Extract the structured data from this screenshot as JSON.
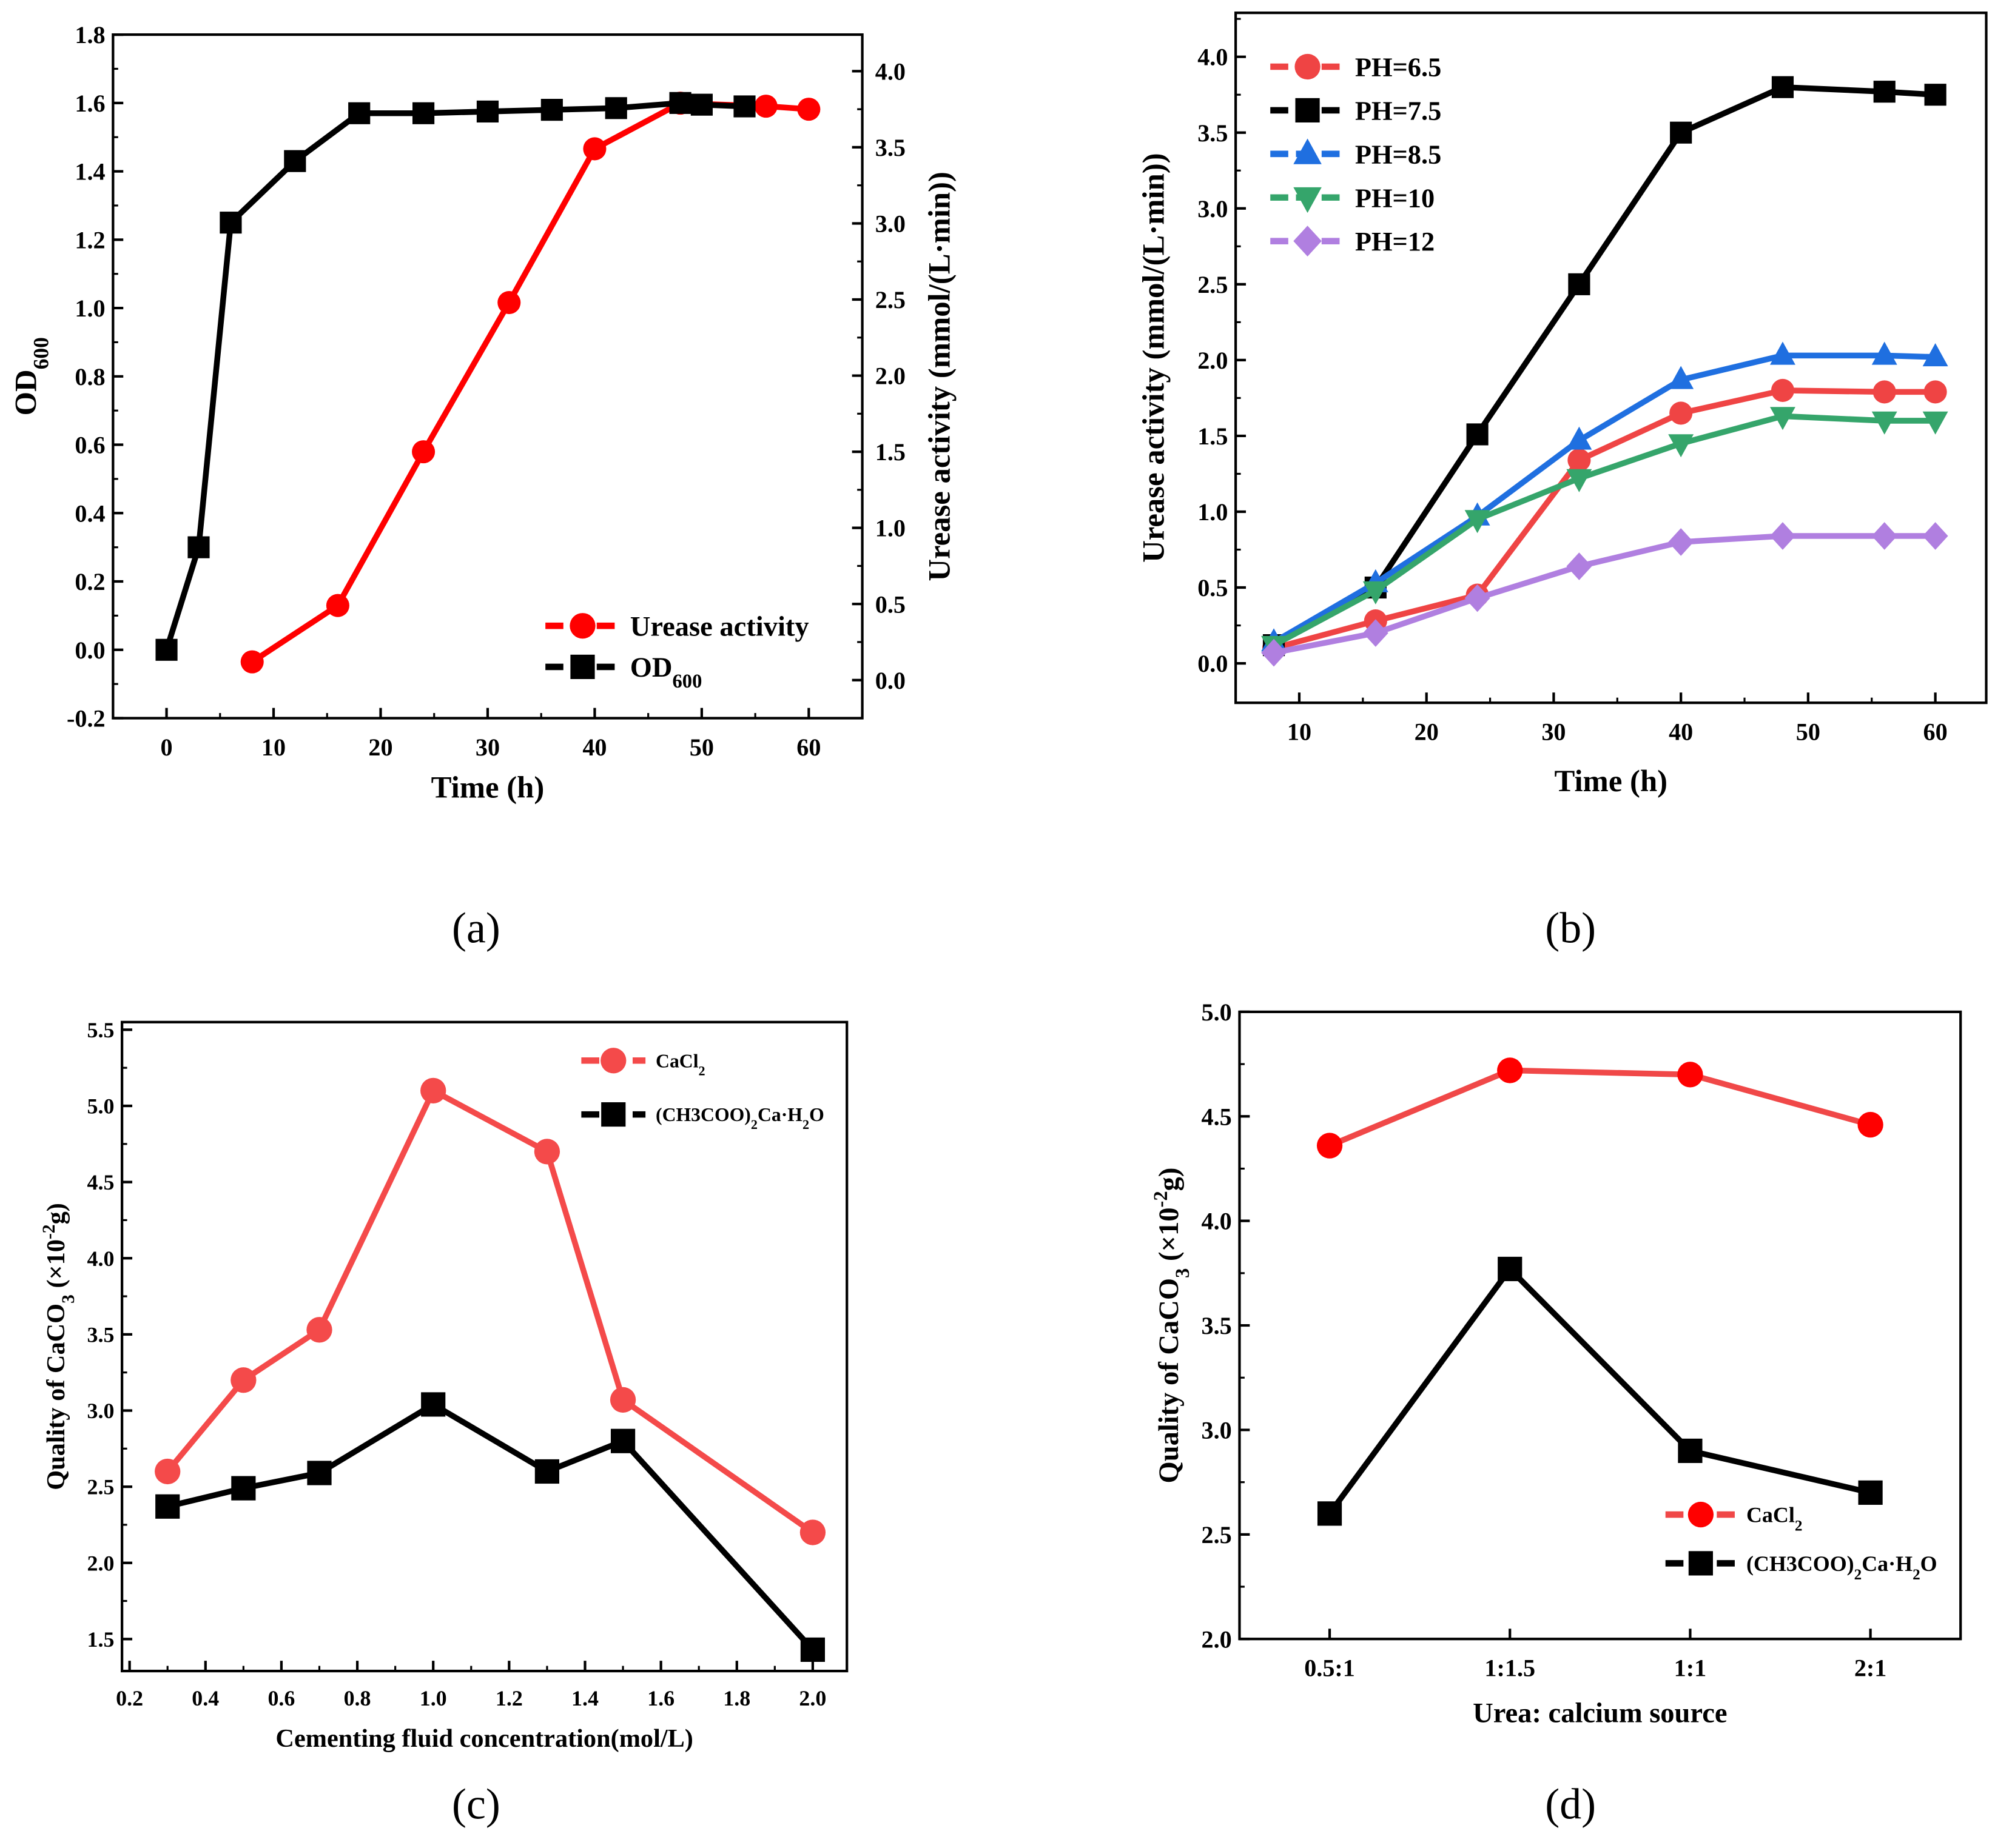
{
  "chart_data": [
    {
      "id": "a",
      "caption": "(a)",
      "type": "line",
      "xlabel": [
        {
          "t": "Time (h)"
        }
      ],
      "ylabel": [
        {
          "t": "OD"
        },
        {
          "t": "600",
          "s": "sub"
        }
      ],
      "y2label": [
        {
          "t": "Urease activity (mmol/(L·min))"
        }
      ],
      "xlim": [
        -5,
        65
      ],
      "ylim": [
        -0.2,
        1.8
      ],
      "y2lim": [
        -0.25,
        4.24
      ],
      "xticks": [
        0,
        10,
        20,
        30,
        40,
        50,
        60
      ],
      "yticks": [
        -0.2,
        0.0,
        0.2,
        0.4,
        0.6,
        0.8,
        1.0,
        1.2,
        1.4,
        1.6,
        1.8
      ],
      "y2ticks": [
        0.0,
        0.5,
        1.0,
        1.5,
        2.0,
        2.5,
        3.0,
        3.5,
        4.0
      ],
      "legend_position": "bottom-right",
      "series": [
        {
          "name": [
            {
              "t": "Urease activity"
            }
          ],
          "axis": "right",
          "marker": "circle",
          "color": "#ff0000",
          "x": [
            8,
            16,
            24,
            32,
            40,
            48,
            56,
            60
          ],
          "y": [
            0.12,
            0.49,
            1.5,
            2.48,
            3.49,
            3.79,
            3.77,
            3.75
          ]
        },
        {
          "name": [
            {
              "t": "OD"
            },
            {
              "t": "600",
              "s": "sub"
            }
          ],
          "axis": "left",
          "marker": "square",
          "color": "#000000",
          "x": [
            0,
            3,
            6,
            12,
            18,
            24,
            30,
            36,
            42,
            48,
            50,
            54
          ],
          "y": [
            0.0,
            0.3,
            1.25,
            1.43,
            1.57,
            1.57,
            1.575,
            1.58,
            1.585,
            1.6,
            1.595,
            1.59
          ]
        }
      ]
    },
    {
      "id": "b",
      "caption": "(b)",
      "type": "line",
      "xlabel": [
        {
          "t": "Time (h)"
        }
      ],
      "ylabel": [
        {
          "t": "Urease activity (mmol/(L·min))"
        }
      ],
      "xlim": [
        5,
        64
      ],
      "ylim": [
        -0.26,
        4.29
      ],
      "xticks": [
        10,
        20,
        30,
        40,
        50,
        60
      ],
      "yticks": [
        0.0,
        0.5,
        1.0,
        1.5,
        2.0,
        2.5,
        3.0,
        3.5,
        4.0
      ],
      "legend_position": "top-left",
      "series": [
        {
          "name": [
            {
              "t": "PH=6.5"
            }
          ],
          "marker": "circle",
          "color": "#ef4444",
          "x": [
            8,
            16,
            24,
            32,
            40,
            48,
            56,
            60
          ],
          "y": [
            0.1,
            0.28,
            0.45,
            1.34,
            1.65,
            1.8,
            1.79,
            1.79
          ]
        },
        {
          "name": [
            {
              "t": "PH=7.5"
            }
          ],
          "marker": "square",
          "color": "#000000",
          "x": [
            8,
            16,
            24,
            32,
            40,
            48,
            56,
            60
          ],
          "y": [
            0.12,
            0.5,
            1.51,
            2.5,
            3.5,
            3.8,
            3.77,
            3.75
          ]
        },
        {
          "name": [
            {
              "t": "PH=8.5"
            }
          ],
          "marker": "triangle-up",
          "color": "#1f6fe0",
          "x": [
            8,
            16,
            24,
            32,
            40,
            48,
            56,
            60
          ],
          "y": [
            0.14,
            0.53,
            0.97,
            1.47,
            1.87,
            2.03,
            2.03,
            2.02
          ]
        },
        {
          "name": [
            {
              "t": "PH=10"
            }
          ],
          "marker": "triangle-down",
          "color": "#35a56b",
          "x": [
            8,
            16,
            24,
            32,
            40,
            48,
            56,
            60
          ],
          "y": [
            0.12,
            0.48,
            0.95,
            1.22,
            1.45,
            1.63,
            1.6,
            1.6
          ]
        },
        {
          "name": [
            {
              "t": "PH=12"
            }
          ],
          "marker": "diamond",
          "color": "#b07fe0",
          "x": [
            8,
            16,
            24,
            32,
            40,
            48,
            56,
            60
          ],
          "y": [
            0.07,
            0.2,
            0.43,
            0.64,
            0.8,
            0.84,
            0.84,
            0.84
          ]
        }
      ]
    },
    {
      "id": "c",
      "caption": "(c)",
      "type": "line",
      "xlabel": [
        {
          "t": "Cementing fluid concentration(mol/L)"
        }
      ],
      "ylabel": [
        {
          "t": "Quality of CaCO"
        },
        {
          "t": "3",
          "s": "sub"
        },
        {
          "t": " (×10"
        },
        {
          "t": "-2",
          "s": "sup"
        },
        {
          "t": "g)"
        }
      ],
      "xlim": [
        0.18,
        2.09
      ],
      "ylim": [
        1.29,
        5.55
      ],
      "xticks": [
        0.2,
        0.4,
        0.6,
        0.8,
        1.0,
        1.2,
        1.4,
        1.6,
        1.8,
        2.0
      ],
      "yticks": [
        1.5,
        2.0,
        2.5,
        3.0,
        3.5,
        4.0,
        4.5,
        5.0,
        5.5
      ],
      "legend_position": "top-right",
      "series": [
        {
          "name": [
            {
              "t": "CaCl"
            },
            {
              "t": "2",
              "s": "sub"
            }
          ],
          "marker": "circle",
          "color": "#f44a4a",
          "x": [
            0.3,
            0.5,
            0.7,
            1.0,
            1.3,
            1.5,
            2.0
          ],
          "y": [
            2.6,
            3.2,
            3.53,
            5.1,
            4.7,
            3.07,
            2.2
          ]
        },
        {
          "name": [
            {
              "t": "(CH3COO)"
            },
            {
              "t": "2",
              "s": "sub"
            },
            {
              "t": "Ca·H"
            },
            {
              "t": "2",
              "s": "sub"
            },
            {
              "t": "O"
            }
          ],
          "marker": "square",
          "color": "#000000",
          "x": [
            0.3,
            0.5,
            0.7,
            1.0,
            1.3,
            1.5,
            2.0
          ],
          "y": [
            2.37,
            2.49,
            2.59,
            3.04,
            2.6,
            2.8,
            1.43
          ]
        }
      ]
    },
    {
      "id": "d",
      "caption": "(d)",
      "type": "line",
      "xlabel": [
        {
          "t": "Urea: calcium source"
        }
      ],
      "ylabel": [
        {
          "t": "Quality of CaCO"
        },
        {
          "t": "3",
          "s": "sub"
        },
        {
          "t": " (×10"
        },
        {
          "t": "-2",
          "s": "sup"
        },
        {
          "t": "g)"
        }
      ],
      "categories": [
        "0.5:1",
        "1:1.5",
        "1:1",
        "2:1"
      ],
      "ylim": [
        2.0,
        5.0
      ],
      "yticks": [
        2.0,
        2.5,
        3.0,
        3.5,
        4.0,
        4.5,
        5.0
      ],
      "legend_position": "bottom-right",
      "series": [
        {
          "name": [
            {
              "t": "CaCl"
            },
            {
              "t": "2",
              "s": "sub"
            }
          ],
          "marker": "circle",
          "color": "#ff0000",
          "linecolor": "#f04848",
          "y": [
            4.36,
            4.72,
            4.7,
            4.46
          ]
        },
        {
          "name": [
            {
              "t": "(CH3COO)"
            },
            {
              "t": "2",
              "s": "sub"
            },
            {
              "t": "Ca·H"
            },
            {
              "t": "2",
              "s": "sub"
            },
            {
              "t": "O"
            }
          ],
          "marker": "square",
          "color": "#000000",
          "y": [
            2.6,
            3.77,
            2.9,
            2.7
          ]
        }
      ]
    }
  ]
}
